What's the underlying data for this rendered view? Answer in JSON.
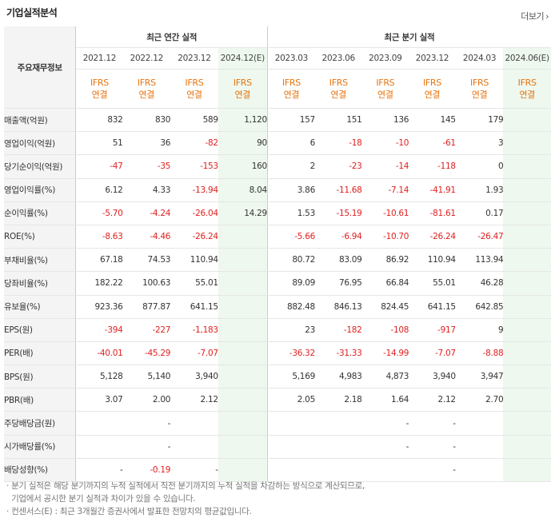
{
  "title": "기업실적분석",
  "more_label": "더보기",
  "table": {
    "row_header_label": "주요재무정보",
    "group_annual": "최근 연간 실적",
    "group_quarter": "최근 분기 실적",
    "periods": [
      "2021.12",
      "2022.12",
      "2023.12",
      "2024.12(E)",
      "2023.03",
      "2023.06",
      "2023.09",
      "2023.12",
      "2024.03",
      "2024.06(E)"
    ],
    "accounting": {
      "line1": "IFRS",
      "line2": "연결"
    },
    "rows": [
      {
        "label": "매출액(억원)",
        "values": [
          "832",
          "830",
          "589",
          "1,120",
          "157",
          "151",
          "136",
          "145",
          "179",
          ""
        ]
      },
      {
        "label": "영업이익(억원)",
        "values": [
          "51",
          "36",
          "-82",
          "90",
          "6",
          "-18",
          "-10",
          "-61",
          "3",
          ""
        ]
      },
      {
        "label": "당기순이익(억원)",
        "values": [
          "-47",
          "-35",
          "-153",
          "160",
          "2",
          "-23",
          "-14",
          "-118",
          "0",
          ""
        ]
      },
      {
        "label": "영업이익률(%)",
        "values": [
          "6.12",
          "4.33",
          "-13.94",
          "8.04",
          "3.86",
          "-11.68",
          "-7.14",
          "-41.91",
          "1.93",
          ""
        ]
      },
      {
        "label": "순이익률(%)",
        "values": [
          "-5.70",
          "-4.24",
          "-26.04",
          "14.29",
          "1.53",
          "-15.19",
          "-10.61",
          "-81.61",
          "0.17",
          ""
        ]
      },
      {
        "label": "ROE(%)",
        "values": [
          "-8.63",
          "-4.46",
          "-26.24",
          "",
          "-5.66",
          "-6.94",
          "-10.70",
          "-26.24",
          "-26.47",
          ""
        ]
      },
      {
        "label": "부채비율(%)",
        "values": [
          "67.18",
          "74.53",
          "110.94",
          "",
          "80.72",
          "83.09",
          "86.92",
          "110.94",
          "113.94",
          ""
        ]
      },
      {
        "label": "당좌비율(%)",
        "values": [
          "182.22",
          "100.63",
          "55.01",
          "",
          "89.09",
          "76.95",
          "66.84",
          "55.01",
          "46.28",
          ""
        ]
      },
      {
        "label": "유보율(%)",
        "values": [
          "923.36",
          "877.87",
          "641.15",
          "",
          "882.48",
          "846.13",
          "824.45",
          "641.15",
          "642.85",
          ""
        ]
      },
      {
        "label": "EPS(원)",
        "values": [
          "-394",
          "-227",
          "-1,183",
          "",
          "23",
          "-182",
          "-108",
          "-917",
          "9",
          ""
        ]
      },
      {
        "label": "PER(배)",
        "values": [
          "-40.01",
          "-45.29",
          "-7.07",
          "",
          "-36.32",
          "-31.33",
          "-14.99",
          "-7.07",
          "-8.88",
          ""
        ]
      },
      {
        "label": "BPS(원)",
        "values": [
          "5,128",
          "5,140",
          "3,940",
          "",
          "5,169",
          "4,983",
          "4,873",
          "3,940",
          "3,947",
          ""
        ]
      },
      {
        "label": "PBR(배)",
        "values": [
          "3.07",
          "2.00",
          "2.12",
          "",
          "2.05",
          "2.18",
          "1.64",
          "2.12",
          "2.70",
          ""
        ]
      },
      {
        "label": "주당배당금(원)",
        "values": [
          "",
          "-",
          "",
          "",
          "",
          "",
          "-",
          "-",
          "",
          ""
        ]
      },
      {
        "label": "시가배당률(%)",
        "values": [
          "",
          "-",
          "",
          "",
          "",
          "",
          "-",
          "-",
          "",
          ""
        ]
      },
      {
        "label": "배당성향(%)",
        "values": [
          "-",
          "-0.19",
          "-",
          "",
          "",
          "",
          "",
          "-",
          "",
          ""
        ]
      }
    ]
  },
  "notes": [
    "· 분기 실적은 해당 분기까지의 누적 실적에서 직전 분기까지의 누적 실적을 차감하는 방식으로 계산되므로,",
    "  기업에서 공시한 분기 실적과 차이가 있을 수 있습니다.",
    "· 컨센서스(E) : 최근 3개월간 증권사에서 발표한 전망치의 평균값입니다."
  ],
  "colors": {
    "negative": "#e02020",
    "ifrs": "#e8730d",
    "estimate_bg": "#eef8ee"
  }
}
